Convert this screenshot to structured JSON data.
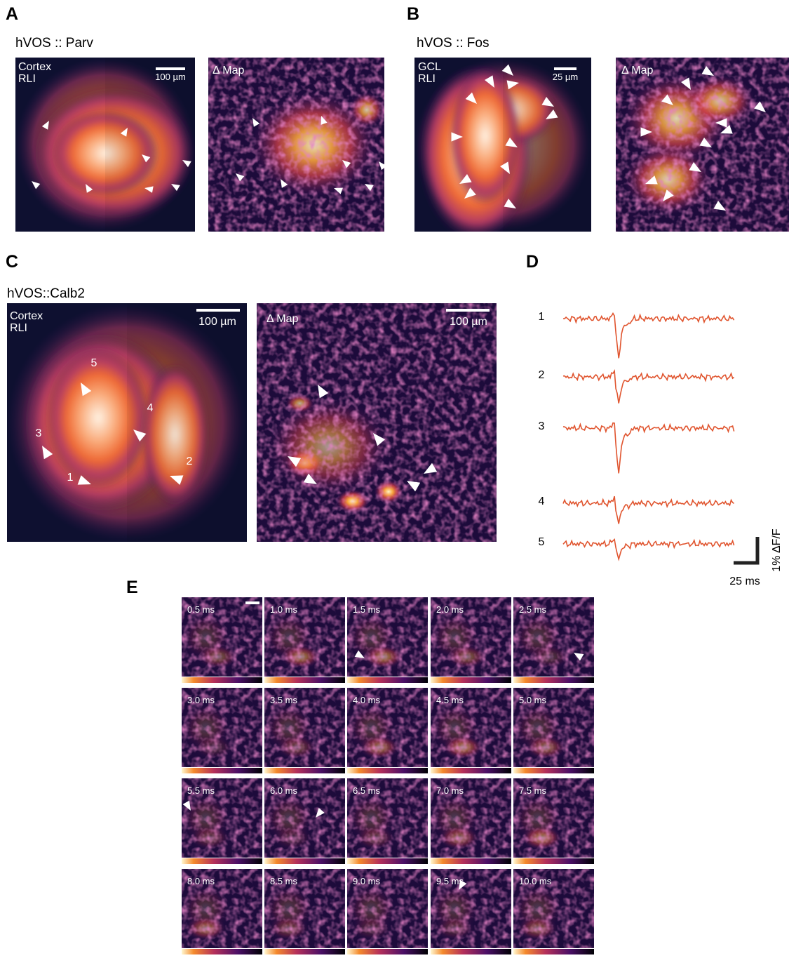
{
  "panels": [
    {
      "label": "A",
      "title": "hVOS :: Parv",
      "images": [
        {
          "labels": [
            "Cortex",
            "RLI"
          ],
          "scale_bar": "100 µm"
        },
        {
          "labels": [
            "Δ Map"
          ]
        }
      ]
    },
    {
      "label": "B",
      "title": "hVOS :: Fos",
      "images": [
        {
          "labels": [
            "GCL",
            "RLI"
          ],
          "scale_bar": "25 µm"
        },
        {
          "labels": [
            "Δ Map"
          ]
        }
      ]
    },
    {
      "label": "C",
      "title": "hVOS::Calb2",
      "images": [
        {
          "labels": [
            "Cortex",
            "RLI"
          ],
          "scale_bar": "100 µm",
          "markers": [
            "1",
            "2",
            "3",
            "4",
            "5"
          ]
        },
        {
          "labels": [
            "Δ Map"
          ],
          "scale_bar": "100 µm"
        }
      ]
    },
    {
      "label": "D",
      "traces": [
        "1",
        "2",
        "3",
        "4",
        "5"
      ],
      "scale_x": "25 ms",
      "scale_y": "1% ΔF/F"
    },
    {
      "label": "E",
      "frames": [
        "0.5 ms",
        "1.0 ms",
        "1.5 ms",
        "2.0 ms",
        "2.5 ms",
        "3.0 ms",
        "3.5 ms",
        "4.0 ms",
        "4.5 ms",
        "5.0 ms",
        "5.5 ms",
        "6.0 ms",
        "6.5 ms",
        "7.0 ms",
        "7.5 ms",
        "8.0 ms",
        "8.5 ms",
        "9.0 ms",
        "9.5 ms",
        "10.0 ms"
      ]
    }
  ]
}
